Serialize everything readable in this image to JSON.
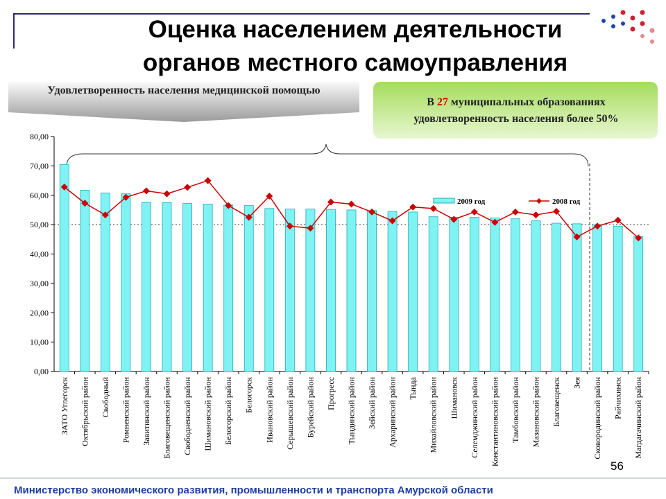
{
  "header": {
    "title_line1": "Оценка населением деятельности",
    "title_line2": "органов местного самоуправления"
  },
  "banner": "Удовлетворенность населения медицинской помощью",
  "note": {
    "prefix": "В",
    "highlight": "27",
    "text": "муниципальных образованиях удовлетворенность населения более 50%"
  },
  "chart_data": {
    "type": "bar-line",
    "categories": [
      "ЗАТО Углегорск",
      "Октябрьский район",
      "Свободный",
      "Ромненский район",
      "Завитинский район",
      "Благовещенский район",
      "Свободненский район",
      "Шимановский район",
      "Белогорский район",
      "Белогорск",
      "Ивановский район",
      "Серышевский район",
      "Бурейский район",
      "Прогресс",
      "Тындинский район",
      "Зейский район",
      "Архаринский район",
      "Тында",
      "Михайловский район",
      "Шимановск",
      "Селемджинский район",
      "Константиновский район",
      "Тамбовский район",
      "Мазановский район",
      "Благовещенск",
      "Зея",
      "Сковородинский район",
      "Райчихинск",
      "Магдагачинский район"
    ],
    "series": [
      {
        "name": "2009 год",
        "color": "#7ff3f3",
        "values": [
          70.5,
          61.7,
          60.8,
          60.5,
          57.5,
          57.5,
          57.2,
          57.0,
          56.7,
          56.5,
          55.5,
          55.3,
          55.3,
          55.2,
          55.0,
          54.8,
          54.5,
          54.3,
          52.7,
          52.5,
          52.5,
          52.3,
          52.0,
          51.3,
          50.5,
          50.3,
          50.0,
          49.5,
          46.0
        ]
      },
      {
        "name": "2008 год",
        "color": "#cc0000",
        "values": [
          62.8,
          57.3,
          53.3,
          59.3,
          61.5,
          60.5,
          62.7,
          65.0,
          56.5,
          52.5,
          59.7,
          49.5,
          48.8,
          57.7,
          57.0,
          54.3,
          51.3,
          56.0,
          55.5,
          51.8,
          54.3,
          50.8,
          54.3,
          53.3,
          54.5,
          45.8,
          49.5,
          51.5,
          45.5
        ]
      }
    ],
    "ylim": [
      0,
      80
    ],
    "yticks": [
      {
        "value": 0,
        "label": "0,00"
      },
      {
        "value": 10,
        "label": "10,00"
      },
      {
        "value": 20,
        "label": "20,00"
      },
      {
        "value": 30,
        "label": "30,00"
      },
      {
        "value": 40,
        "label": "40,00"
      },
      {
        "value": 50,
        "label": "50,00"
      },
      {
        "value": 60,
        "label": "60,00"
      },
      {
        "value": 70,
        "label": "70,00"
      },
      {
        "value": 80,
        "label": "80,00"
      }
    ],
    "reference_line": 50
  },
  "footer": {
    "ministry": "Министерство экономического развития, промышленности и транспорта Амурской области",
    "page": "56"
  }
}
